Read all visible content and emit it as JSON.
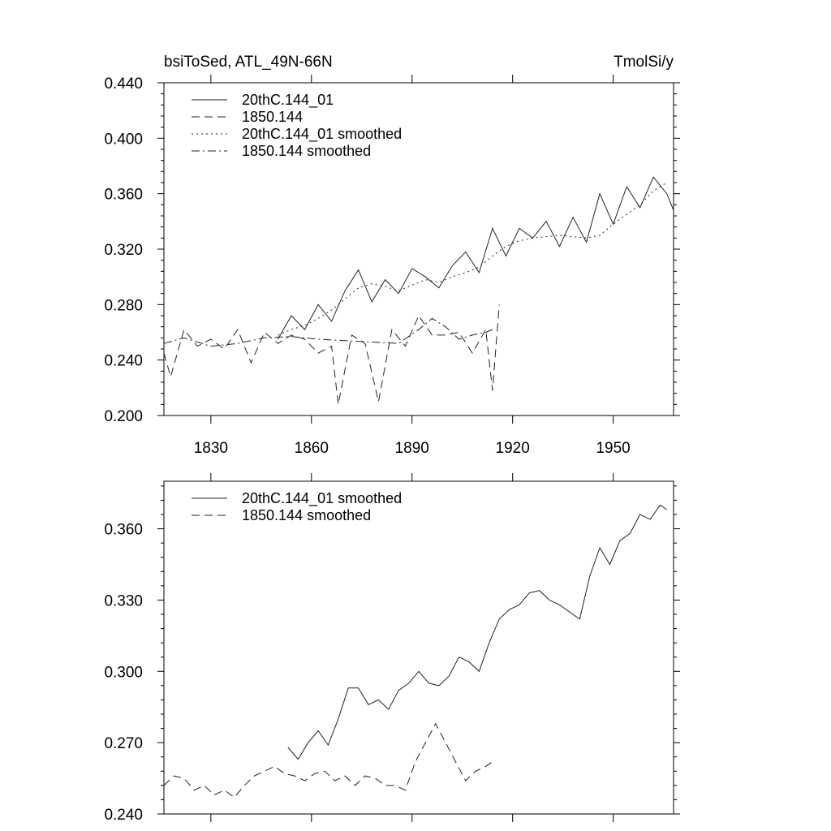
{
  "chart_data": [
    {
      "type": "line",
      "title_left": "bsiToSed, ATL_49N-66N",
      "title_right": "TmolSi/y",
      "xlim": [
        1816,
        1968
      ],
      "ylim": [
        0.2,
        0.44
      ],
      "xticks": [
        1830,
        1860,
        1890,
        1920,
        1950
      ],
      "xtick_labels": [
        "1830",
        "1860",
        "1890",
        "1920",
        "1950"
      ],
      "yticks": [
        0.2,
        0.24,
        0.28,
        0.32,
        0.36,
        0.4,
        0.44
      ],
      "ytick_labels": [
        "0.200",
        "0.240",
        "0.280",
        "0.320",
        "0.360",
        "0.400",
        "0.440"
      ],
      "legend": [
        "20thC.144_01",
        "1850.144",
        "20thC.144_01 smoothed",
        "1850.144 smoothed"
      ],
      "series": [
        {
          "name": "20thC.144_01",
          "style": "solid",
          "x": [
            1850,
            1854,
            1858,
            1862,
            1866,
            1870,
            1874,
            1878,
            1882,
            1886,
            1890,
            1894,
            1898,
            1902,
            1906,
            1910,
            1914,
            1918,
            1922,
            1926,
            1930,
            1934,
            1938,
            1942,
            1946,
            1950,
            1954,
            1958,
            1962,
            1966,
            1968
          ],
          "y": [
            0.255,
            0.272,
            0.262,
            0.28,
            0.268,
            0.29,
            0.305,
            0.282,
            0.298,
            0.288,
            0.306,
            0.3,
            0.292,
            0.308,
            0.318,
            0.303,
            0.335,
            0.315,
            0.335,
            0.328,
            0.34,
            0.322,
            0.343,
            0.325,
            0.36,
            0.338,
            0.365,
            0.35,
            0.372,
            0.36,
            0.348
          ]
        },
        {
          "name": "1850.144",
          "style": "dashed",
          "x": [
            1816,
            1818,
            1822,
            1826,
            1830,
            1834,
            1838,
            1842,
            1846,
            1850,
            1854,
            1858,
            1862,
            1866,
            1868,
            1872,
            1876,
            1880,
            1884,
            1888,
            1892,
            1896,
            1900,
            1904,
            1908,
            1912,
            1914,
            1916
          ],
          "y": [
            0.245,
            0.228,
            0.262,
            0.25,
            0.255,
            0.248,
            0.262,
            0.238,
            0.26,
            0.252,
            0.258,
            0.255,
            0.245,
            0.25,
            0.208,
            0.258,
            0.252,
            0.21,
            0.262,
            0.25,
            0.272,
            0.258,
            0.258,
            0.26,
            0.245,
            0.262,
            0.218,
            0.28
          ]
        },
        {
          "name": "20thC.144_01 smoothed",
          "style": "dotted",
          "x": [
            1850,
            1854,
            1858,
            1862,
            1866,
            1870,
            1874,
            1878,
            1882,
            1886,
            1890,
            1894,
            1898,
            1902,
            1906,
            1910,
            1914,
            1918,
            1922,
            1926,
            1930,
            1934,
            1938,
            1942,
            1946,
            1950,
            1954,
            1958,
            1962,
            1966
          ],
          "y": [
            0.258,
            0.262,
            0.265,
            0.27,
            0.276,
            0.284,
            0.292,
            0.295,
            0.293,
            0.29,
            0.294,
            0.298,
            0.296,
            0.3,
            0.303,
            0.307,
            0.315,
            0.322,
            0.326,
            0.328,
            0.329,
            0.33,
            0.329,
            0.328,
            0.33,
            0.338,
            0.345,
            0.352,
            0.362,
            0.368
          ]
        },
        {
          "name": "1850.144 smoothed",
          "style": "dashdot",
          "x": [
            1816,
            1822,
            1830,
            1838,
            1846,
            1854,
            1862,
            1870,
            1878,
            1886,
            1892,
            1896,
            1900,
            1904,
            1908,
            1912,
            1914
          ],
          "y": [
            0.252,
            0.256,
            0.25,
            0.252,
            0.256,
            0.257,
            0.255,
            0.254,
            0.253,
            0.252,
            0.262,
            0.27,
            0.264,
            0.255,
            0.258,
            0.26,
            0.262
          ]
        }
      ]
    },
    {
      "type": "line",
      "xlim": [
        1816,
        1968
      ],
      "ylim": [
        0.24,
        0.38
      ],
      "xticks": [
        1830,
        1860,
        1890,
        1920,
        1950
      ],
      "yticks": [
        0.24,
        0.27,
        0.3,
        0.33,
        0.36
      ],
      "ytick_labels": [
        "0.240",
        "0.270",
        "0.300",
        "0.330",
        "0.360"
      ],
      "legend": [
        "20thC.144_01 smoothed",
        "1850.144 smoothed"
      ],
      "series": [
        {
          "name": "20thC.144_01 smoothed",
          "style": "solid",
          "x": [
            1853,
            1856,
            1859,
            1862,
            1865,
            1868,
            1871,
            1874,
            1877,
            1880,
            1883,
            1886,
            1889,
            1892,
            1895,
            1898,
            1901,
            1904,
            1907,
            1910,
            1913,
            1916,
            1919,
            1922,
            1925,
            1928,
            1931,
            1934,
            1937,
            1940,
            1943,
            1946,
            1949,
            1952,
            1955,
            1958,
            1961,
            1964,
            1966
          ],
          "y": [
            0.268,
            0.263,
            0.27,
            0.275,
            0.269,
            0.28,
            0.293,
            0.293,
            0.286,
            0.288,
            0.284,
            0.292,
            0.295,
            0.3,
            0.295,
            0.294,
            0.298,
            0.306,
            0.304,
            0.3,
            0.312,
            0.322,
            0.326,
            0.328,
            0.333,
            0.334,
            0.33,
            0.328,
            0.325,
            0.322,
            0.34,
            0.352,
            0.345,
            0.355,
            0.358,
            0.366,
            0.364,
            0.37,
            0.368
          ]
        },
        {
          "name": "1850.144 smoothed",
          "style": "dashed",
          "x": [
            1816,
            1819,
            1822,
            1825,
            1828,
            1831,
            1834,
            1837,
            1840,
            1843,
            1846,
            1849,
            1852,
            1855,
            1858,
            1861,
            1864,
            1867,
            1870,
            1873,
            1876,
            1879,
            1882,
            1885,
            1888,
            1891,
            1894,
            1897,
            1900,
            1903,
            1906,
            1909,
            1912,
            1914
          ],
          "y": [
            0.252,
            0.256,
            0.255,
            0.25,
            0.252,
            0.248,
            0.25,
            0.247,
            0.252,
            0.256,
            0.258,
            0.26,
            0.257,
            0.256,
            0.254,
            0.257,
            0.258,
            0.254,
            0.256,
            0.252,
            0.256,
            0.255,
            0.252,
            0.252,
            0.25,
            0.262,
            0.27,
            0.278,
            0.27,
            0.262,
            0.254,
            0.258,
            0.26,
            0.262
          ]
        }
      ]
    }
  ]
}
